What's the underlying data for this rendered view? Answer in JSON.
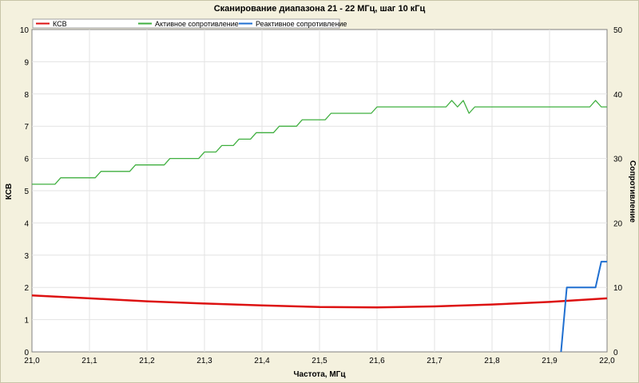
{
  "chart_data": {
    "type": "line",
    "title": "Сканирование диапазона 21 - 22 МГц, шаг 10 кГц",
    "xlabel": "Частота, МГц",
    "ylabel_left": "КСВ",
    "ylabel_right": "Сопротивление",
    "xlim": [
      21.0,
      22.0
    ],
    "ylim_left": [
      0,
      10
    ],
    "ylim_right": [
      0,
      50
    ],
    "x_ticks": [
      "21,0",
      "21,1",
      "21,2",
      "21,3",
      "21,4",
      "21,5",
      "21,6",
      "21,7",
      "21,8",
      "21,9",
      "22,0"
    ],
    "y_left_ticks": [
      "0",
      "1",
      "2",
      "3",
      "4",
      "5",
      "6",
      "7",
      "8",
      "9",
      "10"
    ],
    "y_right_ticks": [
      "0",
      "10",
      "20",
      "30",
      "40",
      "50"
    ],
    "grid": true,
    "legend_position": "top-left",
    "series": [
      {
        "name": "КСВ",
        "axis": "left",
        "color": "#dd1111",
        "x": [
          21.0,
          21.1,
          21.2,
          21.3,
          21.4,
          21.5,
          21.6,
          21.7,
          21.8,
          21.9,
          22.0
        ],
        "y": [
          1.75,
          1.66,
          1.57,
          1.5,
          1.44,
          1.39,
          1.38,
          1.41,
          1.47,
          1.55,
          1.66
        ]
      },
      {
        "name": "Активное сопротивление",
        "axis": "right",
        "color": "#3faf3f",
        "x": [
          21.0,
          21.04,
          21.05,
          21.11,
          21.12,
          21.17,
          21.18,
          21.23,
          21.24,
          21.29,
          21.3,
          21.32,
          21.33,
          21.35,
          21.36,
          21.38,
          21.39,
          21.42,
          21.43,
          21.46,
          21.47,
          21.51,
          21.52,
          21.59,
          21.6,
          21.72,
          21.73,
          21.74,
          21.75,
          21.76,
          21.77,
          21.97,
          21.98,
          21.99,
          22.0
        ],
        "y": [
          26,
          26,
          27,
          27,
          28,
          28,
          29,
          29,
          30,
          30,
          31,
          31,
          32,
          32,
          33,
          33,
          34,
          34,
          35,
          35,
          36,
          36,
          37,
          37,
          38,
          38,
          39,
          38,
          39,
          37,
          38,
          38,
          39,
          38,
          38
        ]
      },
      {
        "name": "Реактивное сопротивление",
        "axis": "right",
        "color": "#1f6fd0",
        "x": [
          21.92,
          21.93,
          21.97,
          21.98,
          21.99,
          22.0
        ],
        "y": [
          0,
          10,
          10,
          10,
          14,
          14
        ]
      }
    ]
  }
}
